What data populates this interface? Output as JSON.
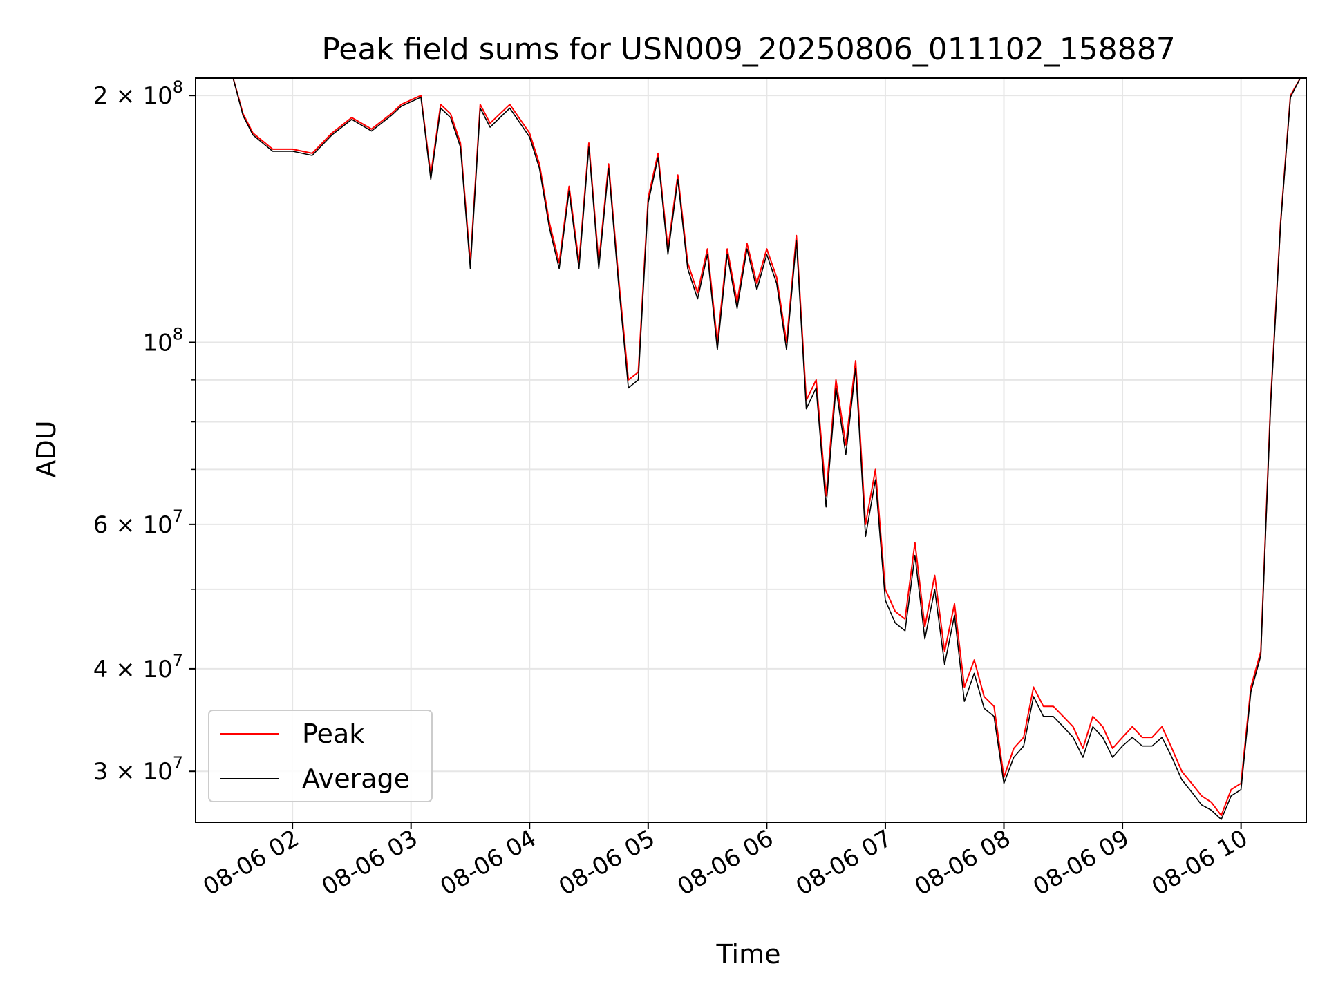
{
  "chart_data": {
    "type": "line",
    "title": "Peak field sums for USN009_20250806_011102_158887",
    "xlabel": "Time",
    "ylabel": "ADU",
    "yscale": "log",
    "ylim": [
      26000000,
      210000000
    ],
    "xlim": [
      "2025-08-06 01:11",
      "2025-08-06 10:33"
    ],
    "grid": true,
    "legend_position": "lower-left",
    "x_ticks": [
      "2025-08-06 02:00",
      "2025-08-06 03:00",
      "2025-08-06 04:00",
      "2025-08-06 05:00",
      "2025-08-06 06:00",
      "2025-08-06 07:00",
      "2025-08-06 08:00",
      "2025-08-06 09:00",
      "2025-08-06 10:00"
    ],
    "x_tick_labels": [
      "08-06 02",
      "08-06 03",
      "08-06 04",
      "08-06 05",
      "08-06 06",
      "08-06 07",
      "08-06 08",
      "08-06 09",
      "08-06 10"
    ],
    "y_major_ticks": [
      {
        "value": 30000000,
        "mantissa": "3",
        "exponent": "7"
      },
      {
        "value": 40000000,
        "mantissa": "4",
        "exponent": "7"
      },
      {
        "value": 60000000,
        "mantissa": "6",
        "exponent": "7"
      },
      {
        "value": 100000000,
        "mantissa": "",
        "exponent": "8"
      },
      {
        "value": 200000000,
        "mantissa": "2",
        "exponent": "8"
      }
    ],
    "y_minor_ticks": [
      50000000,
      70000000,
      80000000,
      90000000
    ],
    "series": [
      {
        "name": "Peak",
        "color": "#ff0000",
        "x": [
          "2025-08-06 01:30",
          "2025-08-06 01:35",
          "2025-08-06 01:40",
          "2025-08-06 01:50",
          "2025-08-06 02:00",
          "2025-08-06 02:10",
          "2025-08-06 02:20",
          "2025-08-06 02:30",
          "2025-08-06 02:40",
          "2025-08-06 02:50",
          "2025-08-06 02:55",
          "2025-08-06 03:05",
          "2025-08-06 03:10",
          "2025-08-06 03:15",
          "2025-08-06 03:20",
          "2025-08-06 03:25",
          "2025-08-06 03:30",
          "2025-08-06 03:35",
          "2025-08-06 03:40",
          "2025-08-06 03:50",
          "2025-08-06 04:00",
          "2025-08-06 04:05",
          "2025-08-06 04:10",
          "2025-08-06 04:15",
          "2025-08-06 04:20",
          "2025-08-06 04:25",
          "2025-08-06 04:30",
          "2025-08-06 04:35",
          "2025-08-06 04:40",
          "2025-08-06 04:45",
          "2025-08-06 04:50",
          "2025-08-06 04:55",
          "2025-08-06 05:00",
          "2025-08-06 05:05",
          "2025-08-06 05:10",
          "2025-08-06 05:15",
          "2025-08-06 05:20",
          "2025-08-06 05:25",
          "2025-08-06 05:30",
          "2025-08-06 05:35",
          "2025-08-06 05:40",
          "2025-08-06 05:45",
          "2025-08-06 05:50",
          "2025-08-06 05:55",
          "2025-08-06 06:00",
          "2025-08-06 06:05",
          "2025-08-06 06:10",
          "2025-08-06 06:15",
          "2025-08-06 06:20",
          "2025-08-06 06:25",
          "2025-08-06 06:30",
          "2025-08-06 06:35",
          "2025-08-06 06:40",
          "2025-08-06 06:45",
          "2025-08-06 06:50",
          "2025-08-06 06:55",
          "2025-08-06 07:00",
          "2025-08-06 07:05",
          "2025-08-06 07:10",
          "2025-08-06 07:15",
          "2025-08-06 07:20",
          "2025-08-06 07:25",
          "2025-08-06 07:30",
          "2025-08-06 07:35",
          "2025-08-06 07:40",
          "2025-08-06 07:45",
          "2025-08-06 07:50",
          "2025-08-06 07:55",
          "2025-08-06 08:00",
          "2025-08-06 08:05",
          "2025-08-06 08:10",
          "2025-08-06 08:15",
          "2025-08-06 08:20",
          "2025-08-06 08:25",
          "2025-08-06 08:30",
          "2025-08-06 08:35",
          "2025-08-06 08:40",
          "2025-08-06 08:45",
          "2025-08-06 08:50",
          "2025-08-06 08:55",
          "2025-08-06 09:00",
          "2025-08-06 09:05",
          "2025-08-06 09:10",
          "2025-08-06 09:15",
          "2025-08-06 09:20",
          "2025-08-06 09:25",
          "2025-08-06 09:30",
          "2025-08-06 09:35",
          "2025-08-06 09:40",
          "2025-08-06 09:45",
          "2025-08-06 09:50",
          "2025-08-06 09:55",
          "2025-08-06 10:00",
          "2025-08-06 10:05",
          "2025-08-06 10:10",
          "2025-08-06 10:15",
          "2025-08-06 10:20",
          "2025-08-06 10:25",
          "2025-08-06 10:30"
        ],
        "values": [
          210000000,
          190000000,
          180000000,
          172000000,
          172000000,
          170000000,
          180000000,
          188000000,
          182000000,
          190000000,
          195000000,
          200000000,
          160000000,
          195000000,
          190000000,
          175000000,
          125000000,
          195000000,
          185000000,
          195000000,
          180000000,
          165000000,
          140000000,
          125000000,
          155000000,
          125000000,
          175000000,
          125000000,
          165000000,
          120000000,
          90000000,
          92000000,
          150000000,
          170000000,
          130000000,
          160000000,
          125000000,
          115000000,
          130000000,
          100000000,
          130000000,
          112000000,
          132000000,
          118000000,
          130000000,
          120000000,
          100000000,
          135000000,
          85000000,
          90000000,
          65000000,
          90000000,
          75000000,
          95000000,
          60000000,
          70000000,
          50000000,
          47000000,
          46000000,
          57000000,
          45000000,
          52000000,
          42000000,
          48000000,
          38000000,
          41000000,
          37000000,
          36000000,
          29500000,
          32000000,
          33000000,
          38000000,
          36000000,
          36000000,
          35000000,
          34000000,
          32000000,
          35000000,
          34000000,
          32000000,
          33000000,
          34000000,
          33000000,
          33000000,
          34000000,
          32000000,
          30000000,
          29000000,
          28000000,
          27500000,
          26500000,
          28500000,
          29000000,
          38000000,
          42000000,
          85000000,
          140000000,
          200000000,
          210000000
        ]
      },
      {
        "name": "Average",
        "color": "#000000",
        "x": [
          "2025-08-06 01:30",
          "2025-08-06 01:35",
          "2025-08-06 01:40",
          "2025-08-06 01:50",
          "2025-08-06 02:00",
          "2025-08-06 02:10",
          "2025-08-06 02:20",
          "2025-08-06 02:30",
          "2025-08-06 02:40",
          "2025-08-06 02:50",
          "2025-08-06 02:55",
          "2025-08-06 03:05",
          "2025-08-06 03:10",
          "2025-08-06 03:15",
          "2025-08-06 03:20",
          "2025-08-06 03:25",
          "2025-08-06 03:30",
          "2025-08-06 03:35",
          "2025-08-06 03:40",
          "2025-08-06 03:50",
          "2025-08-06 04:00",
          "2025-08-06 04:05",
          "2025-08-06 04:10",
          "2025-08-06 04:15",
          "2025-08-06 04:20",
          "2025-08-06 04:25",
          "2025-08-06 04:30",
          "2025-08-06 04:35",
          "2025-08-06 04:40",
          "2025-08-06 04:45",
          "2025-08-06 04:50",
          "2025-08-06 04:55",
          "2025-08-06 05:00",
          "2025-08-06 05:05",
          "2025-08-06 05:10",
          "2025-08-06 05:15",
          "2025-08-06 05:20",
          "2025-08-06 05:25",
          "2025-08-06 05:30",
          "2025-08-06 05:35",
          "2025-08-06 05:40",
          "2025-08-06 05:45",
          "2025-08-06 05:50",
          "2025-08-06 05:55",
          "2025-08-06 06:00",
          "2025-08-06 06:05",
          "2025-08-06 06:10",
          "2025-08-06 06:15",
          "2025-08-06 06:20",
          "2025-08-06 06:25",
          "2025-08-06 06:30",
          "2025-08-06 06:35",
          "2025-08-06 06:40",
          "2025-08-06 06:45",
          "2025-08-06 06:50",
          "2025-08-06 06:55",
          "2025-08-06 07:00",
          "2025-08-06 07:05",
          "2025-08-06 07:10",
          "2025-08-06 07:15",
          "2025-08-06 07:20",
          "2025-08-06 07:25",
          "2025-08-06 07:30",
          "2025-08-06 07:35",
          "2025-08-06 07:40",
          "2025-08-06 07:45",
          "2025-08-06 07:50",
          "2025-08-06 07:55",
          "2025-08-06 08:00",
          "2025-08-06 08:05",
          "2025-08-06 08:10",
          "2025-08-06 08:15",
          "2025-08-06 08:20",
          "2025-08-06 08:25",
          "2025-08-06 08:30",
          "2025-08-06 08:35",
          "2025-08-06 08:40",
          "2025-08-06 08:45",
          "2025-08-06 08:50",
          "2025-08-06 08:55",
          "2025-08-06 09:00",
          "2025-08-06 09:05",
          "2025-08-06 09:10",
          "2025-08-06 09:15",
          "2025-08-06 09:20",
          "2025-08-06 09:25",
          "2025-08-06 09:30",
          "2025-08-06 09:35",
          "2025-08-06 09:40",
          "2025-08-06 09:45",
          "2025-08-06 09:50",
          "2025-08-06 09:55",
          "2025-08-06 10:00",
          "2025-08-06 10:05",
          "2025-08-06 10:10",
          "2025-08-06 10:15",
          "2025-08-06 10:20",
          "2025-08-06 10:25",
          "2025-08-06 10:30"
        ],
        "values": [
          210000000,
          189000000,
          179000000,
          171000000,
          171000000,
          169000000,
          179000000,
          187000000,
          181000000,
          189000000,
          194000000,
          199000000,
          158000000,
          193000000,
          188000000,
          173000000,
          123000000,
          193000000,
          183000000,
          193000000,
          178000000,
          163000000,
          138000000,
          123000000,
          153000000,
          123000000,
          173000000,
          123000000,
          163000000,
          118000000,
          88000000,
          90000000,
          148000000,
          168000000,
          128000000,
          158000000,
          123000000,
          113000000,
          128000000,
          98000000,
          128000000,
          110000000,
          130000000,
          116000000,
          128000000,
          118000000,
          98000000,
          133000000,
          83000000,
          88000000,
          63000000,
          88000000,
          73000000,
          93000000,
          58000000,
          68000000,
          48500000,
          45500000,
          44500000,
          55000000,
          43500000,
          50000000,
          40500000,
          46500000,
          36500000,
          39500000,
          35800000,
          35000000,
          29000000,
          31200000,
          32200000,
          37000000,
          35000000,
          35000000,
          34000000,
          33000000,
          31200000,
          34000000,
          33000000,
          31200000,
          32200000,
          33000000,
          32200000,
          32200000,
          33000000,
          31200000,
          29300000,
          28300000,
          27300000,
          26900000,
          26200000,
          28000000,
          28500000,
          37500000,
          41500000,
          84000000,
          139000000,
          199000000,
          210000000
        ]
      }
    ]
  }
}
